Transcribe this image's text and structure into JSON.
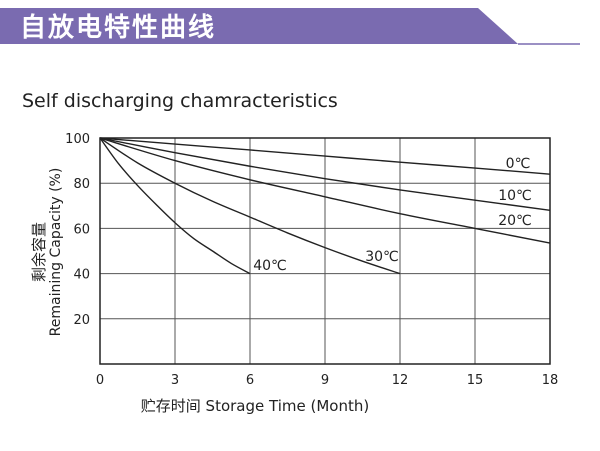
{
  "header": {
    "title": "自放电特性曲线",
    "banner_color": "#7a6bb0"
  },
  "subtitle": "Self discharging chamracteristics",
  "chart_data": {
    "type": "line",
    "xlabel": "贮存时间 Storage Time (Month)",
    "ylabel_cn": "剩余容量",
    "ylabel": "Remaining Capacity (%)",
    "xlim": [
      0,
      18
    ],
    "ylim": [
      0,
      100
    ],
    "xticks": [
      0,
      3,
      6,
      9,
      12,
      15,
      18
    ],
    "yticks": [
      20,
      40,
      60,
      80,
      100
    ],
    "grid": true,
    "series": [
      {
        "name": "0℃",
        "x": [
          0,
          3,
          6,
          9,
          12,
          15,
          18
        ],
        "y": [
          100,
          97.3,
          94.7,
          92,
          89.3,
          86.7,
          84
        ]
      },
      {
        "name": "10℃",
        "x": [
          0,
          3,
          6,
          9,
          12,
          15,
          18
        ],
        "y": [
          100,
          93.5,
          87.5,
          82,
          77,
          72.5,
          68
        ]
      },
      {
        "name": "20℃",
        "x": [
          0,
          3,
          6,
          9,
          12,
          15,
          18
        ],
        "y": [
          100,
          90,
          81.5,
          74,
          66.5,
          60,
          53.5
        ]
      },
      {
        "name": "30℃",
        "x": [
          0,
          1.5,
          3,
          4.5,
          6,
          7.5,
          9,
          10.5,
          12
        ],
        "y": [
          100,
          89,
          80,
          72,
          65,
          58,
          51.5,
          45.5,
          40
        ]
      },
      {
        "name": "40℃",
        "x": [
          0,
          0.75,
          1.5,
          2.25,
          3,
          3.75,
          4.5,
          5.25,
          6
        ],
        "y": [
          100,
          88.5,
          79,
          70.5,
          62.5,
          55.5,
          50,
          44.5,
          40
        ]
      }
    ]
  }
}
